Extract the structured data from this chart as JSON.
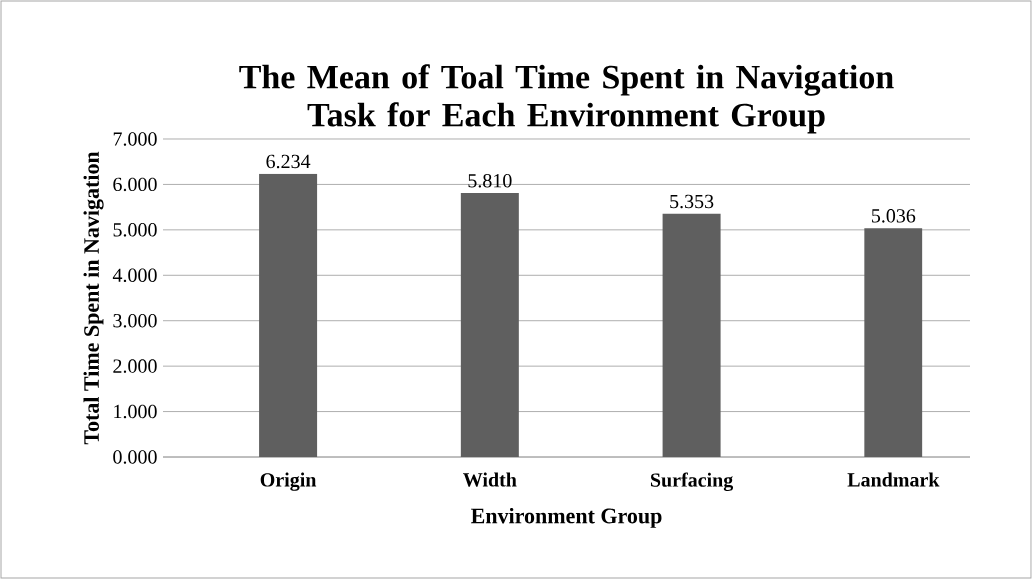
{
  "chart_data": {
    "type": "bar",
    "title": "The Mean of Toal Time Spent in Navigation Task for Each Environment Group",
    "xlabel": "Environment Group",
    "ylabel": "Total Time Spent in Navigation",
    "categories": [
      "Origin",
      "Width",
      "Surfacing",
      "Landmark"
    ],
    "values": [
      6.234,
      5.81,
      5.353,
      5.036
    ],
    "value_labels": [
      "6.234",
      "5.810",
      "5.353",
      "5.036"
    ],
    "color": "#5f5f5f",
    "ylim": [
      0,
      7
    ],
    "yticks": [
      {
        "value": 0,
        "label": "0.000"
      },
      {
        "value": 1,
        "label": "1.000"
      },
      {
        "value": 2,
        "label": "2.000"
      },
      {
        "value": 3,
        "label": "3.000"
      },
      {
        "value": 4,
        "label": "4.000"
      },
      {
        "value": 5,
        "label": "5.000"
      },
      {
        "value": 6,
        "label": "6.000"
      },
      {
        "value": 7,
        "label": "7.000"
      }
    ],
    "grid": "y"
  }
}
